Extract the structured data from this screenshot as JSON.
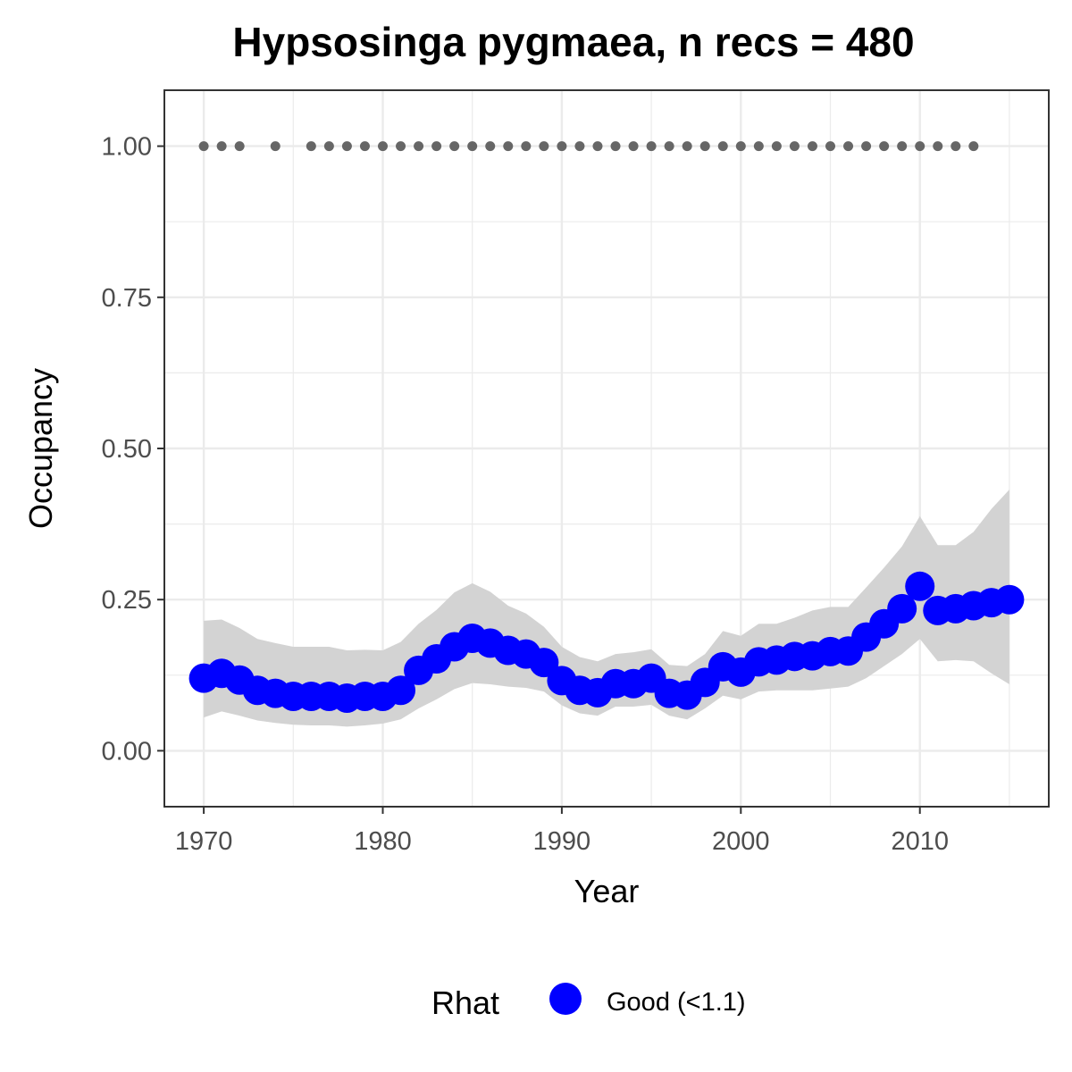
{
  "chart_data": {
    "type": "line",
    "title": "Hypsosinga pygmaea, n recs = 480",
    "xlabel": "Year",
    "ylabel": "Occupancy",
    "xlim": [
      1967.9,
      1917.3
    ],
    "ylim": [
      -0.09,
      1.05
    ],
    "x_ticks": [
      1970,
      1980,
      1990,
      2000,
      2010
    ],
    "x_tick_labels": [
      "1970",
      "1980",
      "1990",
      "2000",
      "2010"
    ],
    "y_ticks": [
      0,
      0.25,
      0.5,
      0.75,
      1
    ],
    "y_tick_labels": [
      "0.00",
      "0.25",
      "0.50",
      "0.75",
      "1.00"
    ],
    "grid": true,
    "legend_position": "bottom",
    "legend": {
      "title": "Rhat",
      "entries": [
        {
          "label": "Good (<1.1)",
          "color": "#0000ff"
        }
      ]
    },
    "colors": {
      "points": "#0000ff",
      "ribbon": "#d3d3d3",
      "record_marks": "#666666",
      "grid": "#ebebeb",
      "panel_border": "#333333"
    },
    "series": [
      {
        "name": "Good (<1.1)",
        "x": [
          1970,
          1971,
          1972,
          1973,
          1974,
          1975,
          1976,
          1977,
          1978,
          1979,
          1980,
          1981,
          1982,
          1983,
          1984,
          1985,
          1986,
          1987,
          1988,
          1989,
          1990,
          1991,
          1992,
          1993,
          1994,
          1995,
          1996,
          1997,
          1998,
          1999,
          2000,
          2001,
          2002,
          2003,
          2004,
          2005,
          2006,
          2007,
          2008,
          2009,
          2010,
          2011,
          2012,
          2013,
          2014,
          2015
        ],
        "y": [
          0.12,
          0.128,
          0.117,
          0.1,
          0.095,
          0.09,
          0.09,
          0.09,
          0.087,
          0.09,
          0.09,
          0.1,
          0.133,
          0.152,
          0.172,
          0.186,
          0.178,
          0.166,
          0.16,
          0.146,
          0.116,
          0.1,
          0.096,
          0.111,
          0.111,
          0.12,
          0.095,
          0.092,
          0.113,
          0.139,
          0.13,
          0.147,
          0.15,
          0.156,
          0.157,
          0.164,
          0.165,
          0.188,
          0.21,
          0.235,
          0.272,
          0.232,
          0.235,
          0.24,
          0.245,
          0.25
        ]
      }
    ],
    "ribbon": {
      "x": [
        1970,
        1971,
        1972,
        1973,
        1974,
        1975,
        1976,
        1977,
        1978,
        1979,
        1980,
        1981,
        1982,
        1983,
        1984,
        1985,
        1986,
        1987,
        1988,
        1989,
        1990,
        1991,
        1992,
        1993,
        1994,
        1995,
        1996,
        1997,
        1998,
        1999,
        2000,
        2001,
        2002,
        2003,
        2004,
        2005,
        2006,
        2007,
        2008,
        2009,
        2010,
        2011,
        2012,
        2013,
        2014,
        2015
      ],
      "lower": [
        0.055,
        0.065,
        0.058,
        0.05,
        0.046,
        0.043,
        0.042,
        0.042,
        0.04,
        0.042,
        0.045,
        0.052,
        0.07,
        0.085,
        0.102,
        0.112,
        0.11,
        0.106,
        0.104,
        0.098,
        0.075,
        0.062,
        0.058,
        0.073,
        0.073,
        0.076,
        0.058,
        0.052,
        0.07,
        0.091,
        0.085,
        0.098,
        0.1,
        0.1,
        0.1,
        0.103,
        0.106,
        0.12,
        0.14,
        0.16,
        0.185,
        0.148,
        0.15,
        0.148,
        0.128,
        0.11
      ],
      "upper": [
        0.215,
        0.217,
        0.203,
        0.185,
        0.178,
        0.172,
        0.172,
        0.172,
        0.166,
        0.167,
        0.166,
        0.18,
        0.21,
        0.233,
        0.262,
        0.277,
        0.263,
        0.24,
        0.227,
        0.205,
        0.172,
        0.155,
        0.148,
        0.16,
        0.163,
        0.168,
        0.142,
        0.14,
        0.16,
        0.198,
        0.19,
        0.21,
        0.21,
        0.22,
        0.232,
        0.238,
        0.238,
        0.27,
        0.303,
        0.338,
        0.388,
        0.34,
        0.34,
        0.362,
        0.4,
        0.432
      ]
    },
    "record_years": [
      1970,
      1971,
      1972,
      1974,
      1976,
      1977,
      1978,
      1979,
      1980,
      1981,
      1982,
      1983,
      1984,
      1985,
      1986,
      1987,
      1988,
      1989,
      1990,
      1991,
      1992,
      1993,
      1994,
      1995,
      1996,
      1997,
      1998,
      1999,
      2000,
      2001,
      2002,
      2003,
      2004,
      2005,
      2006,
      2007,
      2008,
      2009,
      2010,
      2011,
      2012,
      2013
    ],
    "record_level": 1.0
  }
}
